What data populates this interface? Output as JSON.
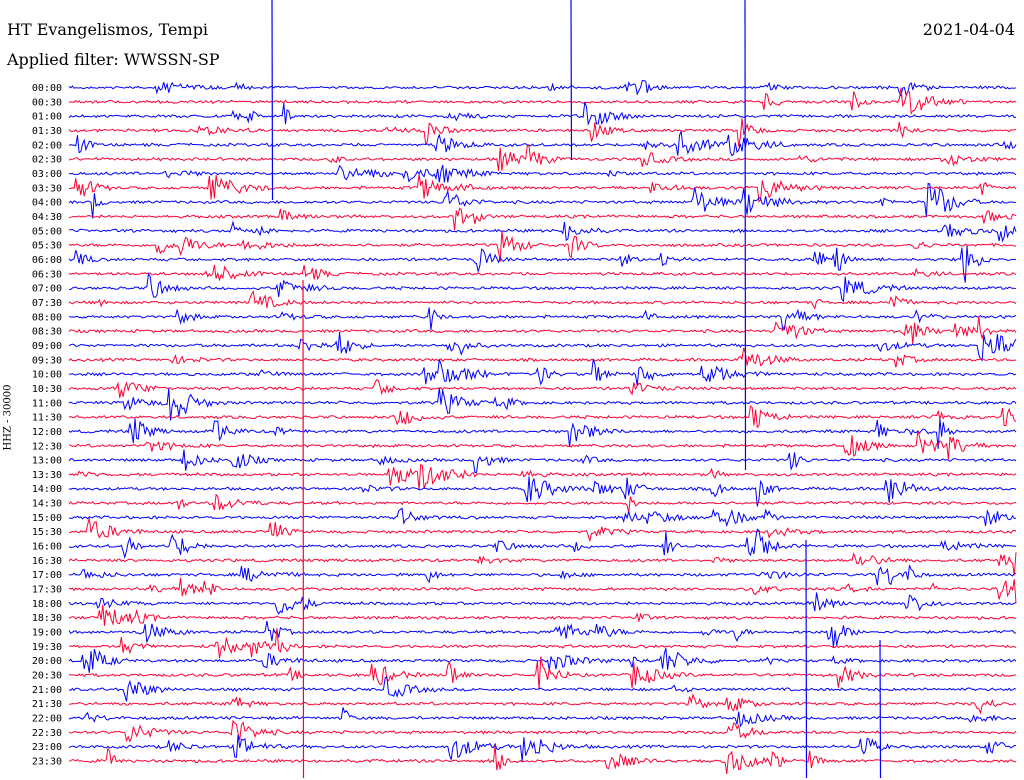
{
  "header": {
    "station": "HT Evangelismos, Tempi",
    "filter": "Applied filter: WWSSN-SP",
    "date": "2021-04-04"
  },
  "chart_data": {
    "type": "line",
    "chart_kind": "helicorder",
    "title": "HT Evangelismos, Tempi",
    "subtitle": "Applied filter: WWSSN-SP",
    "date": "2021-04-04",
    "ylabel": "HHZ - 30000",
    "row_times": [
      "00:00",
      "00:30",
      "01:00",
      "01:30",
      "02:00",
      "02:30",
      "03:00",
      "03:30",
      "04:00",
      "04:30",
      "05:00",
      "05:30",
      "06:00",
      "06:30",
      "07:00",
      "07:30",
      "08:00",
      "08:30",
      "09:00",
      "09:30",
      "10:00",
      "10:30",
      "11:00",
      "11:30",
      "12:00",
      "12:30",
      "13:00",
      "13:30",
      "14:00",
      "14:30",
      "15:00",
      "15:30",
      "16:00",
      "16:30",
      "17:00",
      "17:30",
      "18:00",
      "18:30",
      "19:00",
      "19:30",
      "20:00",
      "20:30",
      "21:00",
      "21:30",
      "22:00",
      "22:30",
      "23:00",
      "23:30"
    ],
    "row_minutes": 30,
    "series_colors": [
      "#0000ff",
      "#ff0033"
    ],
    "grid": false
  }
}
